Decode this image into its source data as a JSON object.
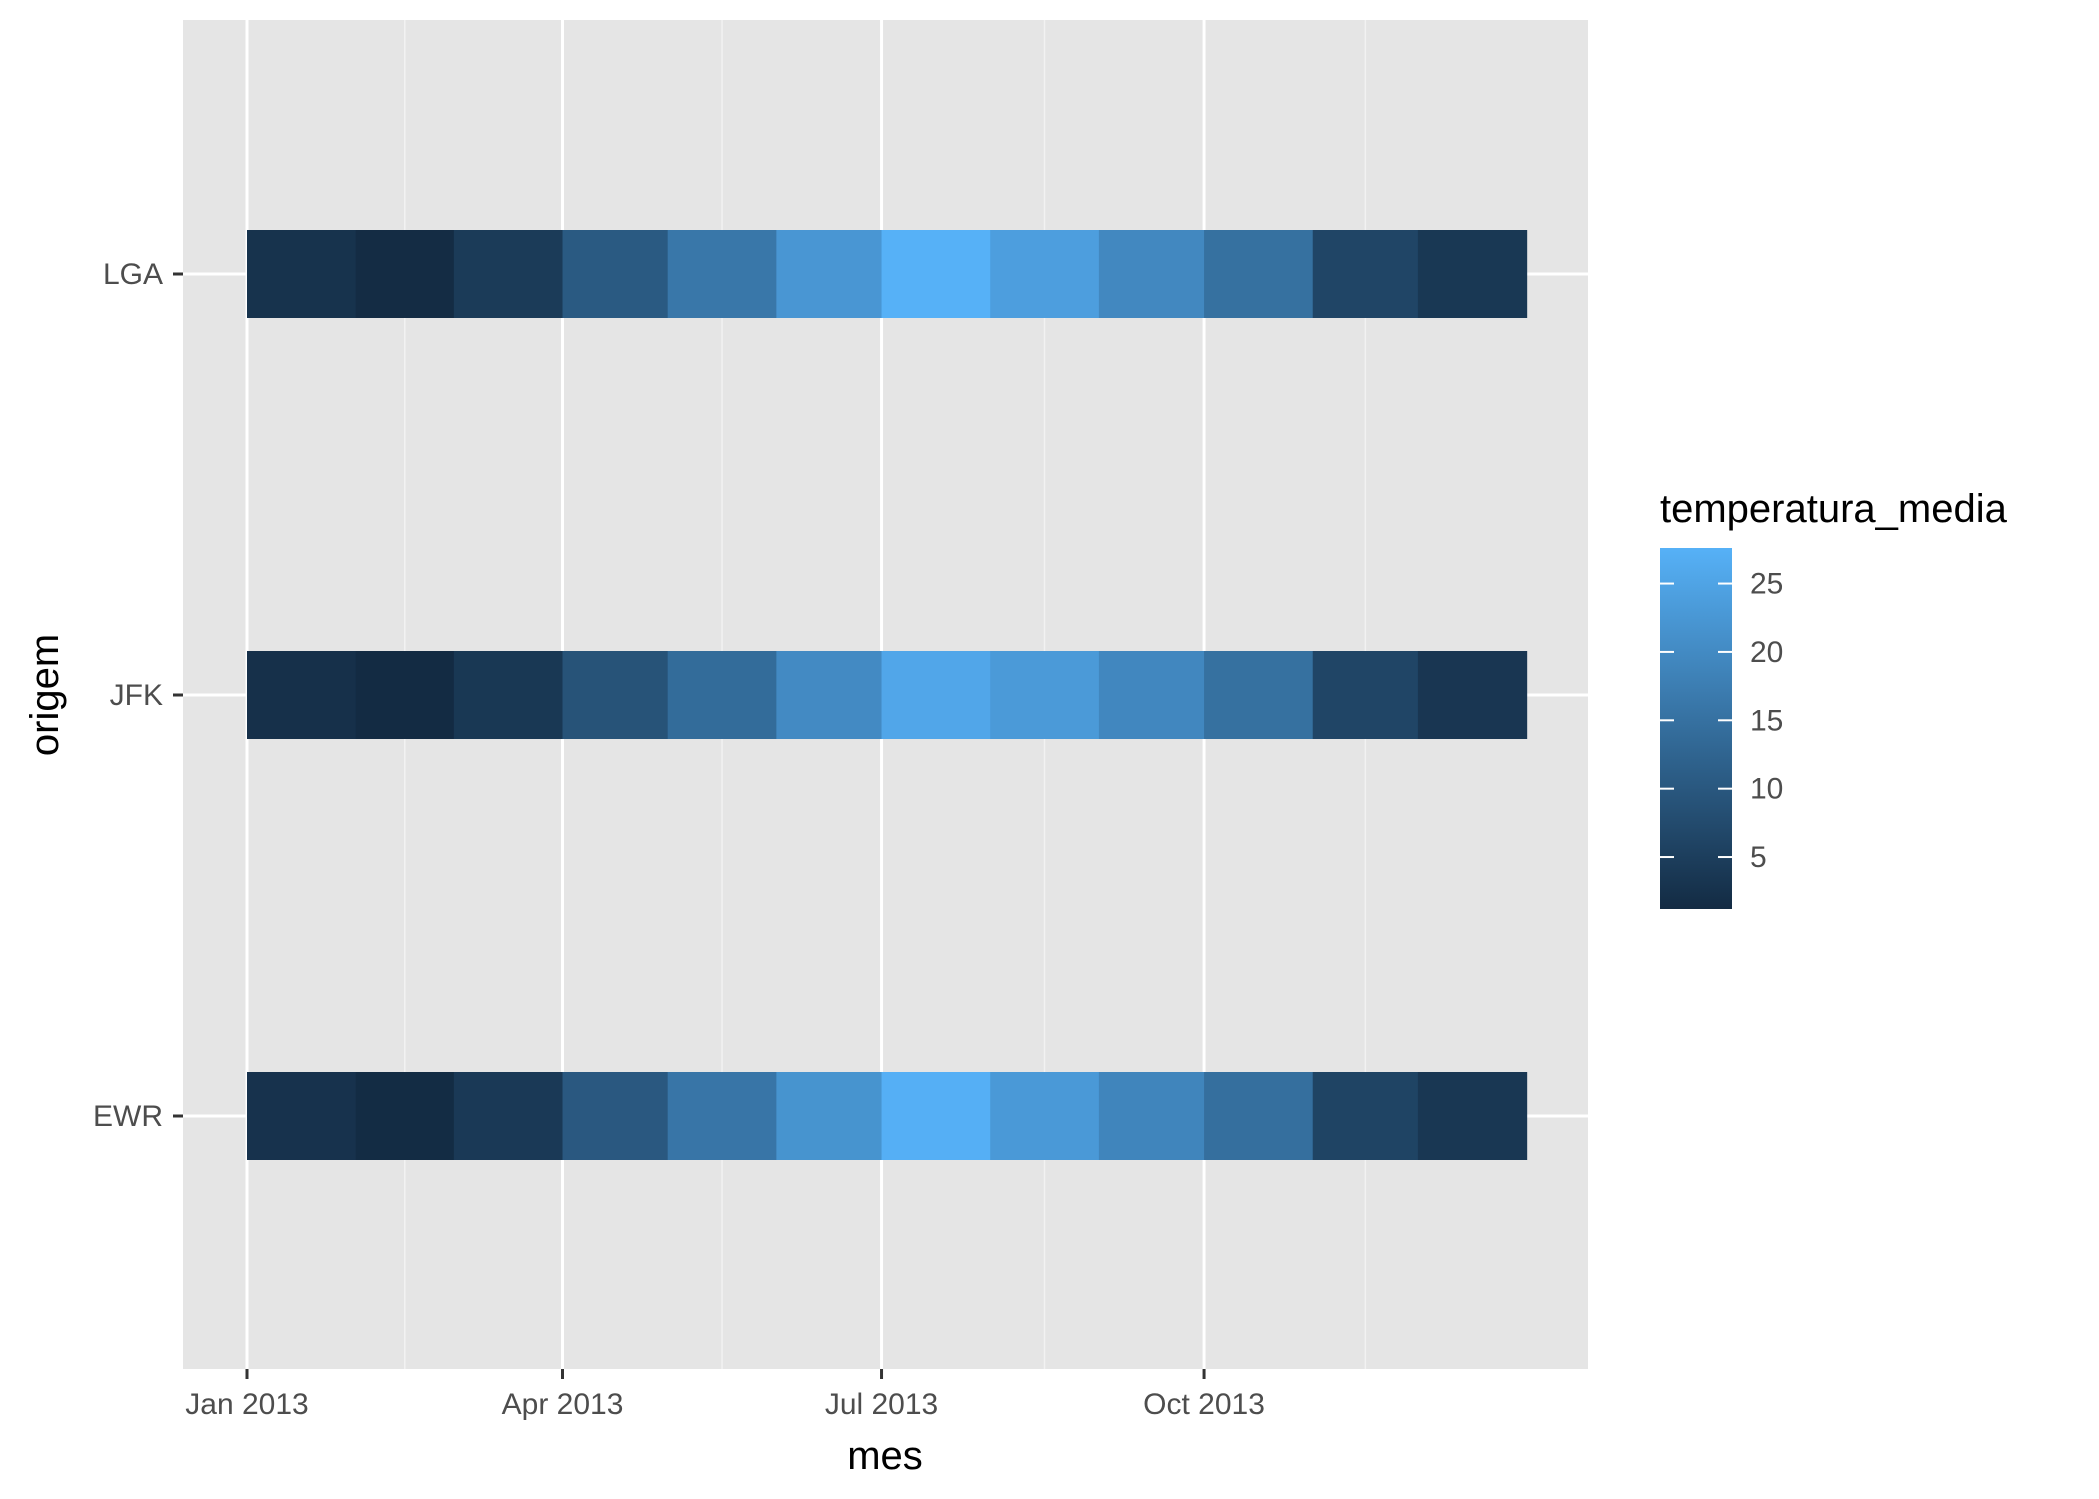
{
  "chart_data": {
    "type": "heatmap",
    "xlabel": "mes",
    "ylabel": "origem",
    "x_categories": [
      "2013-01",
      "2013-02",
      "2013-03",
      "2013-04",
      "2013-05",
      "2013-06",
      "2013-07",
      "2013-08",
      "2013-09",
      "2013-10",
      "2013-11",
      "2013-12"
    ],
    "x_tick_labels": [
      "Jan 2013",
      "Apr 2013",
      "Jul 2013",
      "Oct 2013"
    ],
    "y_categories": [
      "EWR",
      "JFK",
      "LGA"
    ],
    "series": [
      {
        "name": "EWR",
        "values": [
          2.6,
          1.3,
          4.0,
          10.1,
          15.8,
          21.8,
          27.3,
          22.9,
          18.9,
          14.6,
          6.1,
          3.6
        ]
      },
      {
        "name": "JFK",
        "values": [
          2.2,
          1.2,
          3.7,
          9.0,
          14.0,
          20.0,
          25.5,
          23.1,
          19.4,
          14.9,
          6.4,
          3.4
        ]
      },
      {
        "name": "LGA",
        "values": [
          2.7,
          1.4,
          4.3,
          10.4,
          16.1,
          22.3,
          27.6,
          23.9,
          19.6,
          14.9,
          6.3,
          3.7
        ]
      }
    ],
    "legend": {
      "title": "temperatura_media",
      "ticks": [
        5,
        10,
        15,
        20,
        25
      ],
      "min": 1.2,
      "max": 27.6,
      "position": "right"
    },
    "colors": {
      "low": "#132B43",
      "high": "#56B1F7",
      "panel_background": "#E5E5E5",
      "grid_major": "#FFFFFF",
      "grid_minor": "#F2F2F2"
    },
    "grid": true
  }
}
